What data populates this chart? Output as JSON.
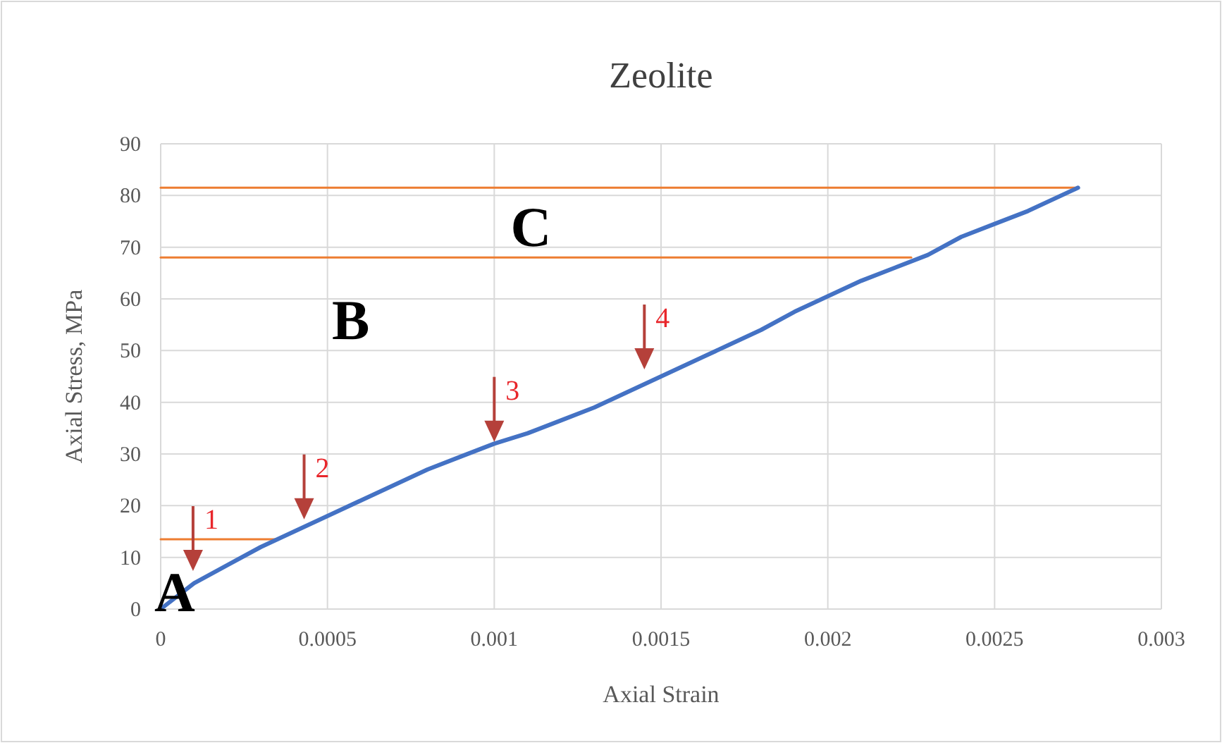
{
  "chart_data": {
    "type": "line",
    "title": "Zeolite",
    "xlabel": "Axial Strain",
    "ylabel": "Axial Stress, MPa",
    "xlim": [
      0,
      0.003
    ],
    "xticks": [
      0,
      0.0005,
      0.001,
      0.0015,
      0.002,
      0.0025,
      0.003
    ],
    "ylim": [
      0,
      90
    ],
    "yticks": [
      0,
      10,
      20,
      30,
      40,
      50,
      60,
      70,
      80,
      90
    ],
    "grid": true,
    "marker": "none",
    "series": [
      {
        "color": "#ed7d31",
        "x": [
          0,
          0.00035
        ],
        "values": [
          13.5,
          13.5
        ]
      },
      {
        "color": "#ed7d31",
        "x": [
          0,
          0.00225
        ],
        "values": [
          68,
          68
        ]
      },
      {
        "color": "#ed7d31",
        "x": [
          0,
          0.00275
        ],
        "values": [
          81.5,
          81.5
        ]
      },
      {
        "color": "#4472c4",
        "x": [
          0,
          0.0001,
          0.0002,
          0.0003,
          0.0004,
          0.0005,
          0.0006,
          0.0007,
          0.0008,
          0.0009,
          0.001,
          0.0011,
          0.0012,
          0.0013,
          0.0014,
          0.0015,
          0.0016,
          0.0017,
          0.0018,
          0.0019,
          0.002,
          0.0021,
          0.0022,
          0.0023,
          0.0024,
          0.0025,
          0.0026,
          0.00275
        ],
        "values": [
          0,
          5,
          8.5,
          12,
          15,
          18,
          21,
          24,
          27,
          29.5,
          32,
          34,
          36.5,
          39,
          42,
          45,
          48,
          51,
          54,
          57.5,
          60.5,
          63.5,
          66,
          68.5,
          72,
          74.5,
          77,
          81.5
        ]
      }
    ],
    "annotations": [
      "A",
      "B",
      "C",
      {
        "text": "1",
        "x": 9.7e-05,
        "y": 6
      },
      {
        "text": "2",
        "x": 0.00043,
        "y": 16
      },
      {
        "text": "3",
        "x": 0.001,
        "y": 31
      },
      {
        "text": "4",
        "x": 0.00145,
        "y": 45
      }
    ]
  }
}
